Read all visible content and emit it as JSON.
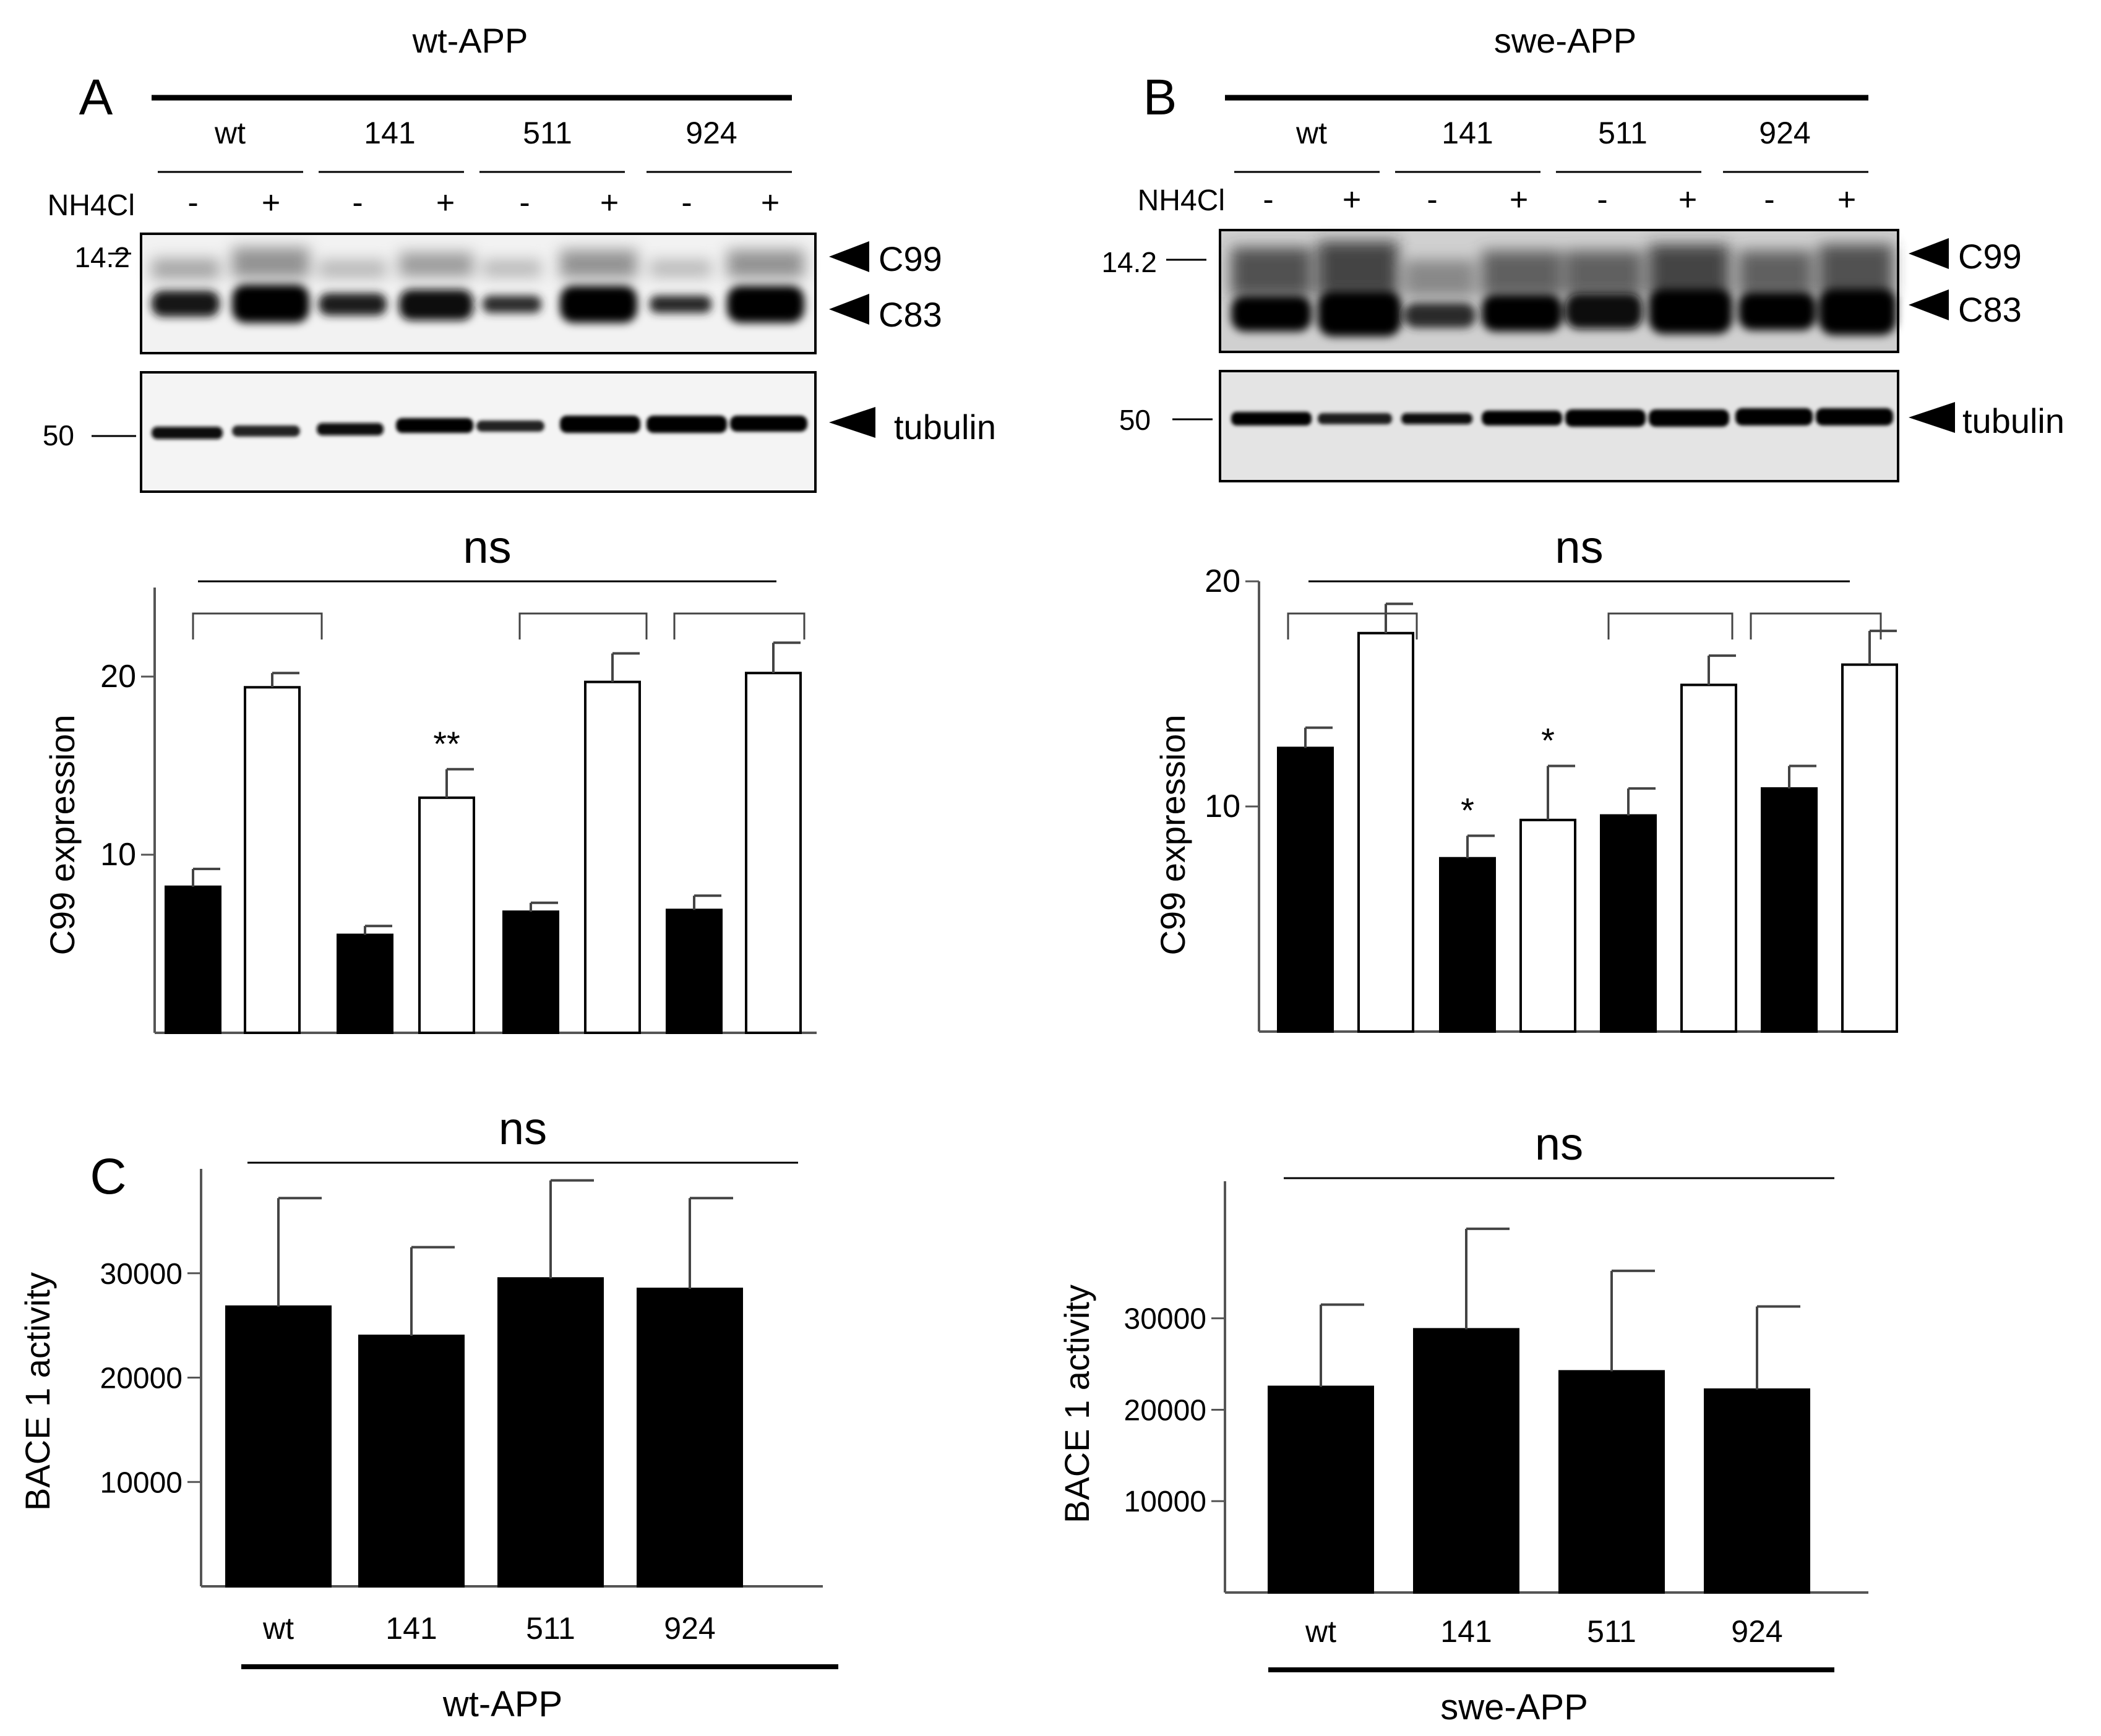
{
  "panels": [
    {
      "letter": "A",
      "group_label": "wt-APP",
      "lanes": [
        "wt",
        "141",
        "511",
        "924"
      ],
      "treatment_label": "NH4Cl",
      "signs": [
        "-",
        "+",
        "-",
        "+",
        "-",
        "+",
        "-",
        "+"
      ],
      "marker_top": "14.2",
      "marker_bottom": "50",
      "band_c99": "C99",
      "band_c83": "C83",
      "band_tubulin": "tubulin"
    },
    {
      "letter": "B",
      "group_label": "swe-APP",
      "lanes": [
        "wt",
        "141",
        "511",
        "924"
      ],
      "treatment_label": "NH4Cl",
      "signs": [
        "-",
        "+",
        "-",
        "+",
        "-",
        "+",
        "-",
        "+"
      ],
      "marker_top": "14.2",
      "marker_bottom": "50",
      "band_c99": "C99",
      "band_c83": "C83",
      "band_tubulin": "tubulin"
    }
  ],
  "panel_c_letter": "C",
  "chart_data": [
    {
      "id": "c99-wt",
      "type": "bar",
      "ylabel": "C99  expression",
      "ylim": [
        0,
        25
      ],
      "yticks": [
        10,
        20
      ],
      "values": [
        8.2,
        19.4,
        5.5,
        13.2,
        6.8,
        19.7,
        6.9,
        20.2
      ],
      "errors": [
        1.0,
        0.8,
        0.5,
        1.6,
        0.5,
        1.6,
        0.8,
        1.7
      ],
      "fills": [
        "black",
        "white",
        "black",
        "white",
        "black",
        "white",
        "black",
        "white"
      ],
      "marks": [
        "",
        "",
        "",
        "**",
        "",
        "",
        "",
        ""
      ],
      "ns_label": "ns"
    },
    {
      "id": "c99-swe",
      "type": "bar",
      "ylabel": "C99  expression",
      "ylim": [
        0,
        20
      ],
      "yticks": [
        10,
        20
      ],
      "values": [
        12.6,
        17.7,
        7.7,
        9.4,
        9.6,
        15.4,
        10.8,
        16.3
      ],
      "errors": [
        0.9,
        1.3,
        1.0,
        2.4,
        1.2,
        1.3,
        1.0,
        1.5
      ],
      "fills": [
        "black",
        "white",
        "black",
        "white",
        "black",
        "white",
        "black",
        "white"
      ],
      "marks": [
        "",
        "",
        "*",
        "*",
        "",
        "",
        "",
        ""
      ],
      "ns_label": "ns"
    },
    {
      "id": "bace-wt",
      "type": "bar",
      "categories": [
        "wt",
        "141",
        "511",
        "924"
      ],
      "ylabel": "BACE 1  activity",
      "xlabel": "wt-APP",
      "ylim": [
        0,
        40000
      ],
      "yticks": [
        10000,
        20000,
        30000
      ],
      "values": [
        26800,
        24000,
        29500,
        28500
      ],
      "errors": [
        10400,
        8500,
        9400,
        8700
      ],
      "ns_label": "ns"
    },
    {
      "id": "bace-swe",
      "type": "bar",
      "categories": [
        "wt",
        "141",
        "511",
        "924"
      ],
      "ylabel": "BACE 1  activity",
      "xlabel": "swe-APP",
      "ylim": [
        0,
        45000
      ],
      "yticks": [
        10000,
        20000,
        30000
      ],
      "values": [
        22500,
        28800,
        24200,
        22200
      ],
      "errors": [
        9000,
        11000,
        11000,
        9100
      ],
      "ns_label": "ns"
    }
  ]
}
